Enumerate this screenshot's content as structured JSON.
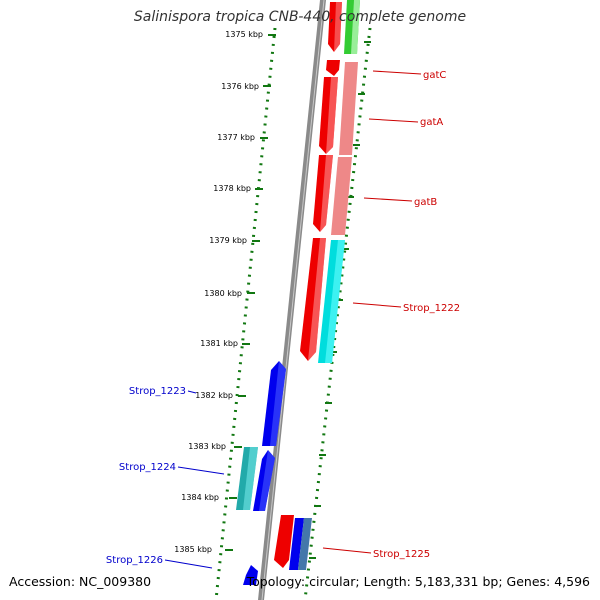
{
  "title": "Salinispora tropica CNB-440, complete genome",
  "footer": {
    "accession": "Accession: NC_009380",
    "summary": "Topology: circular; Length: 5,183,331 bp; Genes: 4,596"
  },
  "colors": {
    "tick": "#117711",
    "backbone": "#888888",
    "red": "#ee0000",
    "pink": "#ee8888",
    "green": "#33cc33",
    "cyan": "#00dddd",
    "teal": "#22aaaa",
    "blue": "#0000ee",
    "steel": "#4477aa",
    "labelRed": "#cc0000",
    "labelBlue": "#0000cc"
  },
  "scale_labels": [
    "1375 kbp",
    "1376 kbp",
    "1377 kbp",
    "1378 kbp",
    "1379 kbp",
    "1380 kbp",
    "1381 kbp",
    "1382 kbp",
    "1383 kbp",
    "1384 kbp",
    "1385 kbp"
  ],
  "gene_labels": {
    "gatC": "gatC",
    "gatA": "gatA",
    "gatB": "gatB",
    "strop1222": "Strop_1222",
    "strop1223": "Strop_1223",
    "strop1224": "Strop_1224",
    "strop1225": "Strop_1225",
    "strop1226": "Strop_1226"
  }
}
